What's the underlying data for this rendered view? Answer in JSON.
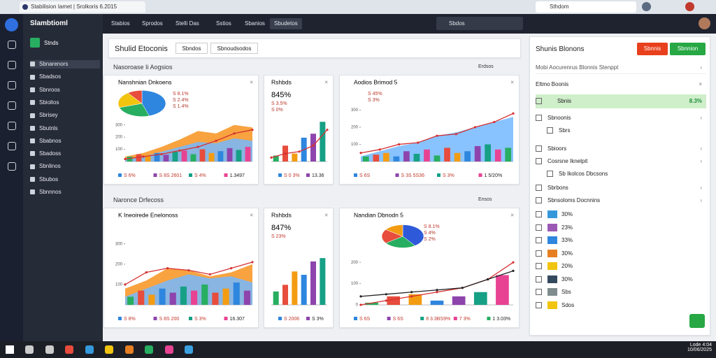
{
  "browser": {
    "tab": "Stabilision Iamet | Srolkoris 6.2015",
    "address": "Sthdom"
  },
  "sidebar": {
    "title": "Slambtioml",
    "workspace": "Stnds",
    "items": [
      "Sbnarenors",
      "Sbadsos",
      "Sbnroos",
      "Sbioltos",
      "Sbrisey",
      "Sbutnls",
      "Sbabnos",
      "Sbadoss",
      "Sbnlinos",
      "Sbubos",
      "Sbnnnos"
    ]
  },
  "nav": {
    "tabs": [
      "Stabios",
      "Sprodos",
      "Stelli Das",
      "Sstios",
      "Sbanios",
      "Sbudetos"
    ],
    "search": "Sbdos"
  },
  "header": {
    "title": "Shulid Etoconis",
    "tabs": [
      "Sbndos",
      "Sbnoudsodos"
    ]
  },
  "palette": [
    "#27ae60",
    "#e74c3c",
    "#f39c12",
    "#2e86de",
    "#8e44ad",
    "#16a085",
    "#e84393"
  ],
  "sections": [
    {
      "label": "Nasoroase Ii Aogsios",
      "action": "Erdsos",
      "cards": [
        {
          "title": "Nanshnian Dnkoens",
          "stats": [
            "S 8.1%",
            "S 2.4%",
            "S 1.4%"
          ],
          "pie": [
            45,
            25,
            20,
            10
          ],
          "pie_colors": [
            "#2e86de",
            "#27ae60",
            "#f1c40f",
            "#e74c3c"
          ],
          "ylim": [
            0,
            350
          ],
          "yticks": [
            100,
            200,
            300
          ],
          "areas": [
            {
              "color": "#f7931e",
              "values": [
                40,
                70,
                120,
                180,
                250,
                230,
                300,
                280
              ]
            },
            {
              "color": "#74b9ff",
              "values": [
                20,
                40,
                80,
                120,
                160,
                150,
                190,
                170
              ]
            }
          ],
          "lines": [
            {
              "color": "#d63031",
              "values": [
                20,
                40,
                60,
                90,
                120,
                170,
                230,
                260
              ]
            }
          ],
          "bars": [
            40,
            60,
            50,
            70,
            55,
            80,
            90,
            60,
            100,
            70,
            85,
            110,
            95,
            120
          ],
          "footer": [
            "S 6%",
            "S 8S 2601",
            "S 4%",
            "1.3497"
          ]
        },
        {
          "title": "Rshbds",
          "big": "845%",
          "stats": [
            "S 3.5%",
            "S 0%"
          ],
          "ylim": [
            0,
            250
          ],
          "lines": [
            {
              "color": "#d63031",
              "values": [
                20,
                40,
                50,
                80,
                160
              ]
            }
          ],
          "bars": [
            30,
            80,
            40,
            120,
            140,
            200
          ],
          "footer": [
            "S 0 3%",
            "13.36"
          ]
        },
        {
          "title": "Aodios Brimod 5",
          "stats": [
            "S 45%",
            "S 3%"
          ],
          "ylim": [
            0,
            330
          ],
          "yticks": [
            100,
            200,
            300
          ],
          "areas": [
            {
              "color": "#74b9ff",
              "values": [
                30,
                60,
                90,
                110,
                150,
                170,
                200,
                230,
                260
              ]
            }
          ],
          "lines": [
            {
              "color": "#d63031",
              "values": [
                50,
                70,
                100,
                110,
                150,
                160,
                200,
                230,
                280
              ]
            }
          ],
          "bars": [
            30,
            40,
            50,
            30,
            60,
            45,
            70,
            35,
            80,
            50,
            60,
            90,
            100,
            70,
            80
          ],
          "footer": [
            "S 6S",
            "S 3S 5S36",
            "S 3%",
            "1 5/20%"
          ]
        }
      ]
    },
    {
      "label": "Naronce Drfecoss",
      "action": "Ensos",
      "cards": [
        {
          "title": "K Ineoirede Enelonoss",
          "ylim": [
            0,
            330
          ],
          "yticks": [
            100,
            200,
            300
          ],
          "areas": [
            {
              "color": "#f7931e",
              "values": [
                80,
                120,
                180,
                170,
                140,
                160,
                200
              ]
            },
            {
              "color": "#74b9ff",
              "values": [
                40,
                80,
                120,
                150,
                130,
                140,
                110
              ]
            }
          ],
          "lines": [
            {
              "color": "#d63031",
              "values": [
                100,
                160,
                180,
                170,
                150,
                180,
                210
              ]
            }
          ],
          "bars": [
            40,
            70,
            50,
            80,
            60,
            90,
            70,
            100,
            60,
            80,
            110,
            70
          ],
          "footer": [
            "S 8%",
            "S 8S 200",
            "S 3%",
            "16.307"
          ]
        },
        {
          "title": "Rshbds",
          "big": "847%",
          "stats": [
            "S 23%"
          ],
          "ylim": [
            0,
            180
          ],
          "bars": [
            40,
            60,
            100,
            90,
            130,
            140
          ],
          "footer": [
            "S 2006",
            "S 3%"
          ]
        },
        {
          "title": "Nandian Dbnodn 5",
          "stats": [
            "S 8.1%",
            "S 4%",
            "S 2%"
          ],
          "pie": [
            40,
            25,
            20,
            15
          ],
          "pie_colors": [
            "#2e59d9",
            "#27ae60",
            "#e74c3c",
            "#f39c12"
          ],
          "ylim": [
            0,
            250
          ],
          "yticks": [
            0,
            100,
            200
          ],
          "lines": [
            {
              "color": "#d63031",
              "values": [
                0,
                20,
                40,
                60,
                80,
                120,
                200
              ]
            },
            {
              "color": "#222",
              "values": [
                40,
                50,
                60,
                70,
                80,
                120,
                160
              ]
            }
          ],
          "bars": [
            10,
            40,
            50,
            20,
            40,
            60,
            140
          ],
          "footer": [
            "S 6S",
            "S 6S",
            "8 3.3BS9%",
            "7 3%",
            "1 3.03%"
          ]
        }
      ]
    }
  ],
  "panel": {
    "title": "Shunis Blonons",
    "buttons": [
      "Sbnnis",
      "Sbnnion"
    ],
    "search": "Mobi Aocurenrus Blonnis Stenppt",
    "group": "Eltmo Boonis",
    "selected": {
      "label": "Sbnis",
      "value": "8.3%"
    },
    "rows": [
      "Sbnoonis",
      "Sbrs",
      "Sbioors",
      "Cosrsne Iknelpit",
      "Sb Ikolcos Dbcsons",
      "Sbrbons",
      "Sbnsoloms Docnnins"
    ],
    "swatches": [
      {
        "color": "#3498db",
        "label": "30%"
      },
      {
        "color": "#9b59b6",
        "label": "23%"
      },
      {
        "color": "#2e86de",
        "label": "33%"
      },
      {
        "color": "#e67e22",
        "label": "30%"
      },
      {
        "color": "#f1c40f",
        "label": "20%"
      },
      {
        "color": "#34495e",
        "label": "30%"
      },
      {
        "color": "#7f8c8d",
        "label": "Sbs"
      },
      {
        "color": "#f1c40f",
        "label": "Sdos"
      }
    ]
  },
  "taskbar": {
    "time": "Lode 4:04",
    "date": "10/06/2025"
  }
}
